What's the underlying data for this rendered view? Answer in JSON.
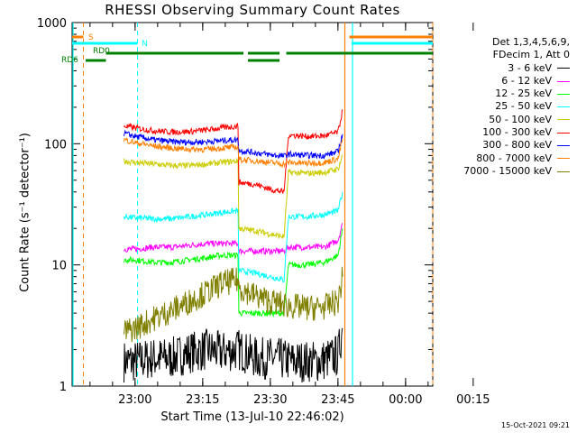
{
  "title": "RHESSI Observing Summary Count Rates",
  "xlabel": "Start Time (13-Jul-10 22:46:02)",
  "ylabel": "Count Rate (s⁻¹ detector⁻¹)",
  "timestamp": "15-Oct-2021 09:21",
  "legend": {
    "header_line1": "Det 1,3,4,5,6,9,",
    "header_line2": "FDecim 1, Att 0",
    "items": [
      {
        "label": "3 - 6 keV",
        "color": "#000000"
      },
      {
        "label": "6 - 12 keV",
        "color": "#ff00ff"
      },
      {
        "label": "12 - 25 keV",
        "color": "#00ff00"
      },
      {
        "label": "25 - 50 keV",
        "color": "#00ffff"
      },
      {
        "label": "50 - 100 keV",
        "color": "#cccc00"
      },
      {
        "label": "100 - 300 keV",
        "color": "#ff0000"
      },
      {
        "label": "300 - 800 keV",
        "color": "#0000ff"
      },
      {
        "label": "800 - 7000 keV",
        "color": "#ff8000"
      },
      {
        "label": "7000 - 15000 keV",
        "color": "#808000"
      }
    ]
  },
  "flags": [
    {
      "label": "S",
      "color": "#ff8000"
    },
    {
      "label": "N",
      "color": "#00ffff"
    },
    {
      "label": "RD0",
      "color": "#008000"
    },
    {
      "label": "RD6",
      "color": "#008000"
    }
  ],
  "chart_data": {
    "type": "line",
    "x_unit": "minutes since 22:46:02",
    "xlim": [
      0,
      80
    ],
    "ylim": [
      1,
      1000
    ],
    "ylog": true,
    "xticks": [
      "23:00",
      "23:15",
      "23:30",
      "23:45",
      "00:00",
      "00:15"
    ],
    "yticks": [
      "1",
      "10",
      "100",
      "1000"
    ],
    "markers": {
      "solid_cyan": [
        0,
        62
      ],
      "dashed_orange": [
        2.5,
        80
      ],
      "dashed_cyan": [
        14.5
      ],
      "solid_orange": [
        60.5
      ]
    },
    "series": [
      {
        "name": "3 - 6 keV",
        "color": "#000000",
        "points": [
          [
            11.5,
            1.6
          ],
          [
            14,
            1.6
          ],
          [
            18,
            1.7
          ],
          [
            22,
            1.7
          ],
          [
            26,
            1.9
          ],
          [
            30,
            2
          ],
          [
            33,
            1.9
          ],
          [
            37,
            2
          ],
          [
            41,
            1.7
          ],
          [
            45,
            1.7
          ],
          [
            49,
            1.6
          ],
          [
            52,
            1.6
          ],
          [
            55,
            1.6
          ],
          [
            59,
            1.8
          ],
          [
            60,
            3
          ]
        ]
      },
      {
        "name": "6 - 12 keV",
        "color": "#ff00ff",
        "points": [
          [
            11.5,
            13.5
          ],
          [
            14,
            13.5
          ],
          [
            18,
            14
          ],
          [
            22,
            14
          ],
          [
            26,
            14.5
          ],
          [
            30,
            15
          ],
          [
            33,
            15
          ],
          [
            36.8,
            15
          ],
          [
            37,
            13
          ],
          [
            41,
            13
          ],
          [
            44,
            13
          ],
          [
            47,
            13
          ],
          [
            48,
            14
          ],
          [
            52,
            14
          ],
          [
            56,
            14
          ],
          [
            59,
            16
          ],
          [
            60,
            22
          ]
        ]
      },
      {
        "name": "12 - 25 keV",
        "color": "#00ff00",
        "points": [
          [
            11.5,
            11
          ],
          [
            14,
            11
          ],
          [
            18,
            10.5
          ],
          [
            22,
            10.5
          ],
          [
            26,
            11
          ],
          [
            30,
            11.5
          ],
          [
            33,
            12
          ],
          [
            36.8,
            12
          ],
          [
            37,
            4
          ],
          [
            41,
            4
          ],
          [
            44,
            4
          ],
          [
            47,
            4
          ],
          [
            48,
            10
          ],
          [
            52,
            10
          ],
          [
            56,
            10.5
          ],
          [
            59,
            12
          ],
          [
            60,
            20
          ]
        ]
      },
      {
        "name": "25 - 50 keV",
        "color": "#00ffff",
        "points": [
          [
            11.5,
            25
          ],
          [
            14,
            24.5
          ],
          [
            18,
            24
          ],
          [
            22,
            24
          ],
          [
            26,
            25
          ],
          [
            30,
            26
          ],
          [
            33,
            27
          ],
          [
            36.8,
            28
          ],
          [
            37,
            9
          ],
          [
            41,
            8.5
          ],
          [
            44,
            8
          ],
          [
            47,
            7.5
          ],
          [
            48,
            25
          ],
          [
            52,
            25
          ],
          [
            56,
            26
          ],
          [
            59,
            28
          ],
          [
            60,
            40
          ]
        ]
      },
      {
        "name": "50 - 100 keV",
        "color": "#cccc00",
        "points": [
          [
            11.5,
            72
          ],
          [
            14,
            70
          ],
          [
            18,
            68
          ],
          [
            22,
            66
          ],
          [
            26,
            66
          ],
          [
            30,
            68
          ],
          [
            33,
            70
          ],
          [
            36.8,
            72
          ],
          [
            37,
            20
          ],
          [
            41,
            19
          ],
          [
            44,
            18
          ],
          [
            47,
            17
          ],
          [
            48,
            58
          ],
          [
            52,
            57
          ],
          [
            56,
            58
          ],
          [
            59,
            62
          ],
          [
            60,
            80
          ]
        ]
      },
      {
        "name": "100 - 300 keV",
        "color": "#ff0000",
        "points": [
          [
            11.5,
            140
          ],
          [
            14,
            135
          ],
          [
            18,
            128
          ],
          [
            22,
            125
          ],
          [
            26,
            126
          ],
          [
            30,
            130
          ],
          [
            33,
            135
          ],
          [
            36.8,
            140
          ],
          [
            37,
            48
          ],
          [
            41,
            46
          ],
          [
            44,
            42
          ],
          [
            47,
            40
          ],
          [
            48,
            118
          ],
          [
            52,
            115
          ],
          [
            56,
            116
          ],
          [
            59,
            125
          ],
          [
            60,
            190
          ]
        ]
      },
      {
        "name": "300 - 800 keV",
        "color": "#0000ff",
        "points": [
          [
            11.5,
            122
          ],
          [
            14,
            115
          ],
          [
            18,
            108
          ],
          [
            22,
            104
          ],
          [
            26,
            103
          ],
          [
            30,
            104
          ],
          [
            33,
            106
          ],
          [
            36.8,
            108
          ],
          [
            37,
            88
          ],
          [
            41,
            84
          ],
          [
            44,
            81
          ],
          [
            47,
            79
          ],
          [
            48,
            82
          ],
          [
            52,
            80
          ],
          [
            56,
            80
          ],
          [
            59,
            86
          ],
          [
            60,
            120
          ]
        ]
      },
      {
        "name": "800 - 7000 keV",
        "color": "#ff8000",
        "points": [
          [
            11.5,
            108
          ],
          [
            14,
            102
          ],
          [
            18,
            96
          ],
          [
            22,
            92
          ],
          [
            26,
            90
          ],
          [
            30,
            90
          ],
          [
            33,
            92
          ],
          [
            36.8,
            94
          ],
          [
            37,
            74
          ],
          [
            41,
            72
          ],
          [
            44,
            70
          ],
          [
            47,
            68
          ],
          [
            48,
            70
          ],
          [
            52,
            69
          ],
          [
            56,
            70
          ],
          [
            59,
            75
          ],
          [
            60,
            110
          ]
        ]
      },
      {
        "name": "7000 - 15000 keV",
        "color": "#808000",
        "points": [
          [
            11.5,
            2.8
          ],
          [
            14,
            3
          ],
          [
            18,
            3.6
          ],
          [
            22,
            4.2
          ],
          [
            26,
            5
          ],
          [
            30,
            6
          ],
          [
            33,
            7
          ],
          [
            36.8,
            7.5
          ],
          [
            37,
            6.5
          ],
          [
            41,
            5.5
          ],
          [
            44,
            5
          ],
          [
            47,
            4.7
          ],
          [
            48,
            4.6
          ],
          [
            52,
            4.4
          ],
          [
            56,
            4.5
          ],
          [
            59,
            5
          ],
          [
            60,
            8
          ]
        ]
      }
    ]
  }
}
